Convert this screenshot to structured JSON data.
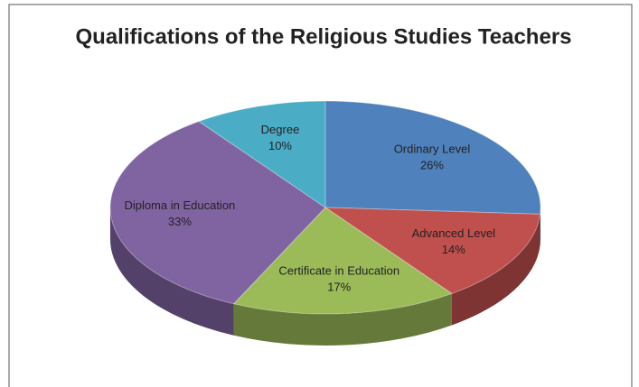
{
  "chart_data": {
    "type": "pie",
    "title": "Qualifications of the Religious Studies Teachers",
    "categories": [
      "Ordinary Level",
      "Advanced Level",
      "Certificate in Education",
      "Diploma in Education",
      "Degree"
    ],
    "values": [
      26,
      14,
      17,
      33,
      10
    ],
    "value_labels": [
      "26%",
      "14%",
      "17%",
      "33%",
      "10%"
    ],
    "colors": [
      "#4f81bd",
      "#c0504d",
      "#9bbb59",
      "#8064a2",
      "#4bacc6"
    ]
  }
}
